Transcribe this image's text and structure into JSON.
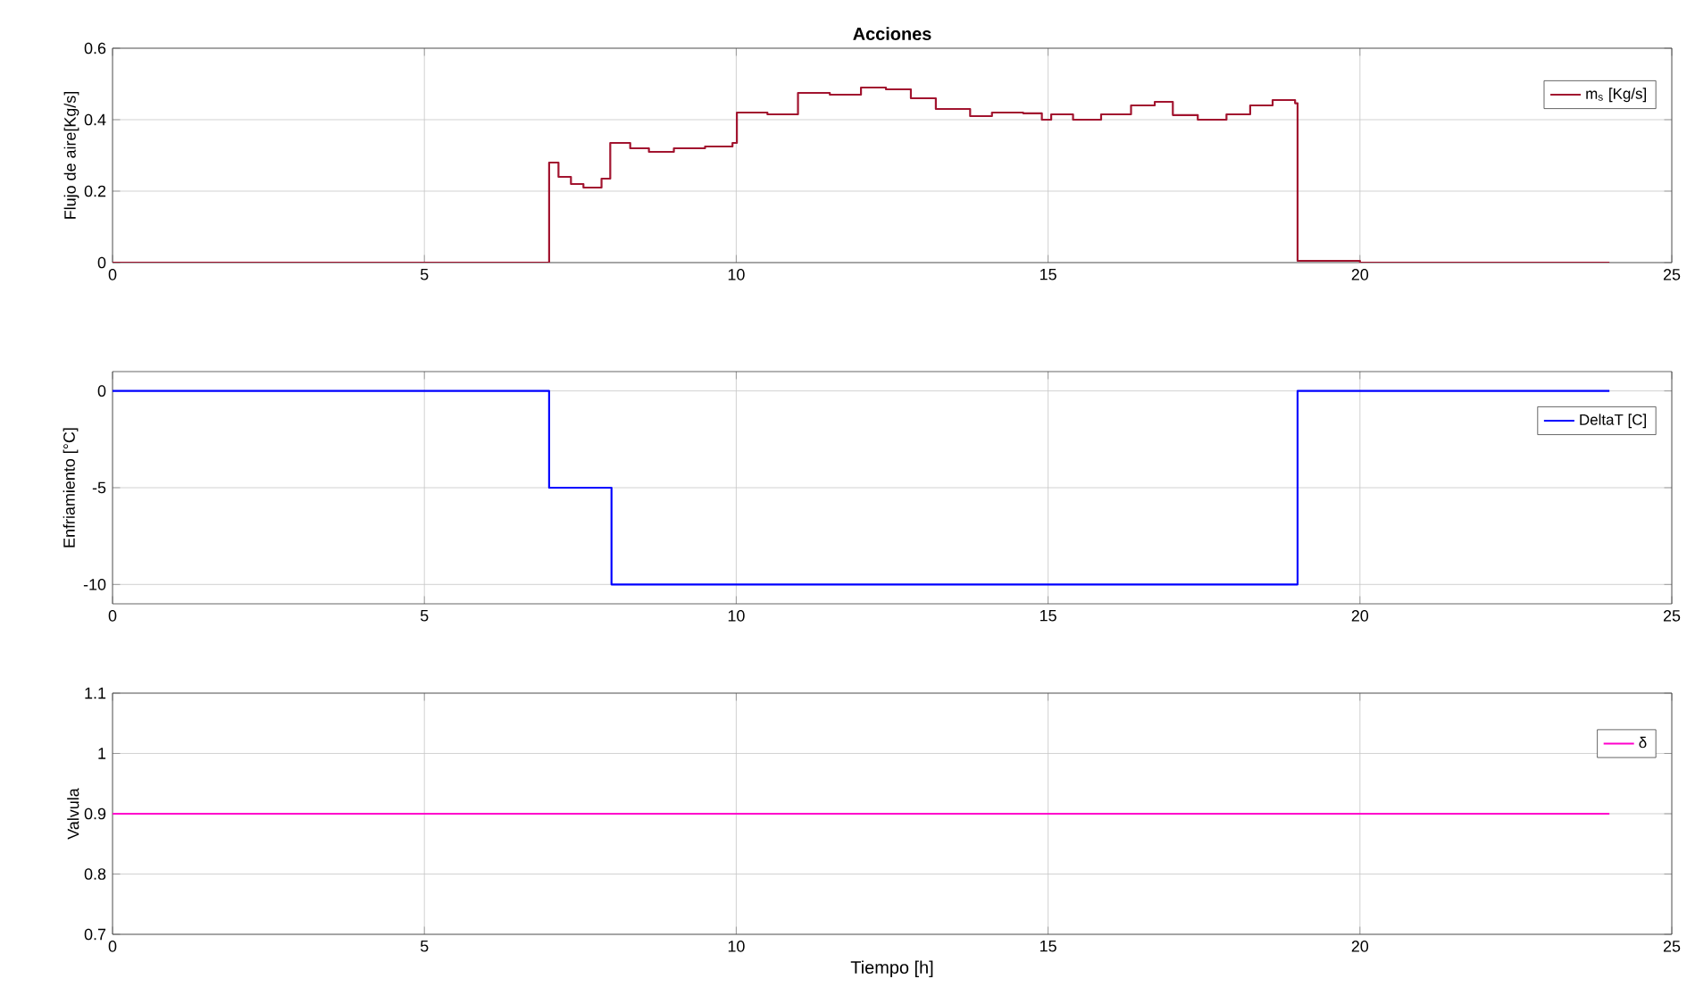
{
  "chart_data": [
    {
      "type": "step",
      "title": "Acciones",
      "ylabel": "Flujo de aire[Kg/s]",
      "xlim": [
        0,
        25
      ],
      "xticks": [
        0,
        5,
        10,
        15,
        20,
        25
      ],
      "ylim": [
        0,
        0.6
      ],
      "yticks": [
        0,
        0.2,
        0.4,
        0.6
      ],
      "grid": true,
      "legend": "top right",
      "series": [
        {
          "name": "m$_{s}$ [Kg/s]",
          "color": "#a2142f",
          "x": [
            0,
            7,
            7.15,
            7.35,
            7.55,
            7.84,
            7.98,
            8.3,
            8.6,
            9.0,
            9.5,
            9.94,
            10.01,
            10.5,
            10.99,
            11.5,
            12.0,
            12.4,
            12.8,
            13.2,
            13.75,
            14.1,
            14.6,
            14.9,
            15.05,
            15.4,
            15.85,
            16.33,
            16.71,
            17.0,
            17.4,
            17.86,
            18.24,
            18.6,
            18.96,
            19.0,
            20.0,
            24
          ],
          "values": [
            0,
            0.28,
            0.24,
            0.22,
            0.21,
            0.235,
            0.335,
            0.32,
            0.31,
            0.32,
            0.325,
            0.335,
            0.42,
            0.415,
            0.475,
            0.47,
            0.49,
            0.485,
            0.46,
            0.43,
            0.41,
            0.42,
            0.418,
            0.4,
            0.415,
            0.4,
            0.415,
            0.44,
            0.45,
            0.413,
            0.4,
            0.415,
            0.44,
            0.455,
            0.446,
            0.005,
            0,
            0
          ]
        }
      ]
    },
    {
      "type": "step",
      "ylabel": "Enfriamiento [°C]",
      "xlim": [
        0,
        25
      ],
      "xticks": [
        0,
        5,
        10,
        15,
        20,
        25
      ],
      "ylim": [
        -11,
        1
      ],
      "yticks": [
        -10,
        -5,
        0
      ],
      "grid": true,
      "legend": "top right",
      "series": [
        {
          "name": "DeltaT [C]",
          "color": "#0000ff",
          "x": [
            0,
            7,
            8,
            19,
            24
          ],
          "values": [
            0,
            -5,
            -10,
            0,
            0
          ]
        }
      ]
    },
    {
      "type": "step",
      "xlabel": "Tiempo [h]",
      "ylabel": "Valvula",
      "xlim": [
        0,
        25
      ],
      "xticks": [
        0,
        5,
        10,
        15,
        20,
        25
      ],
      "ylim": [
        0.7,
        1.1
      ],
      "yticks": [
        0.7,
        0.8,
        0.9,
        1,
        1.1
      ],
      "grid": true,
      "legend": "top right",
      "series": [
        {
          "name": "δ",
          "color": "#ff00cc",
          "x": [
            0,
            24
          ],
          "values": [
            0.9,
            0.9
          ]
        }
      ]
    }
  ]
}
